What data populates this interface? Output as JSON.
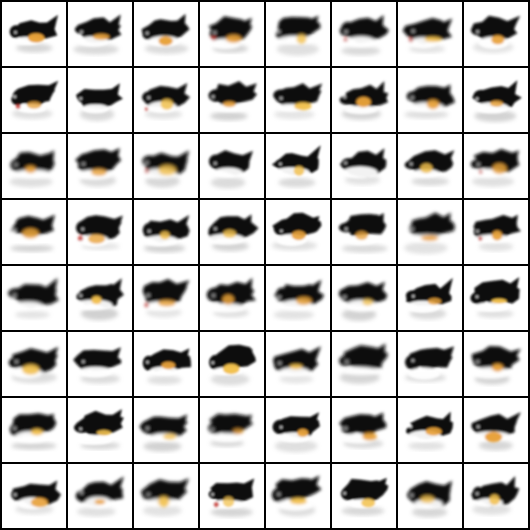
{
  "grid": {
    "rows": 8,
    "columns": 8,
    "subject": "generated-bird-sample",
    "colors": {
      "background": "#ffffff",
      "border": "#000000",
      "body": "#0a0a0a",
      "accent_yellow": "#f2c14e",
      "accent_orange": "#e8a23a",
      "accent_red": "#c8403a",
      "shadow_gray": "#9a9a9a"
    }
  }
}
